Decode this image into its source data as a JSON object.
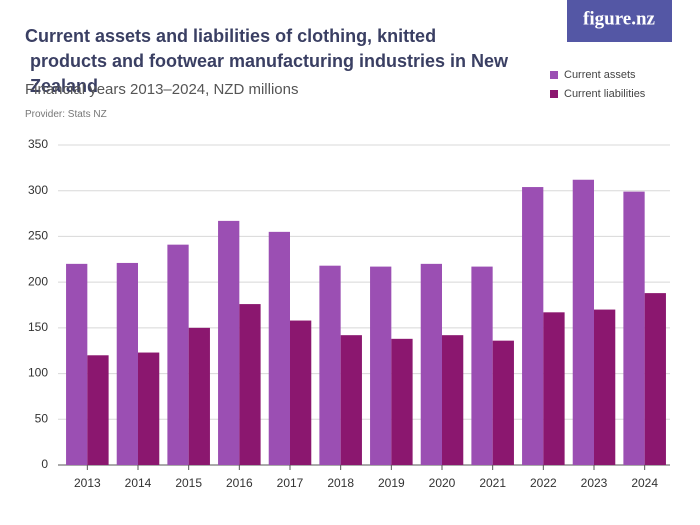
{
  "logo": "figure.nz",
  "chart_data": {
    "type": "bar",
    "title": "Current assets and liabilities of clothing, knitted products and footwear manufacturing industries in New Zealand",
    "subtitle": "Financial years 2013–2024, NZD millions",
    "provider": "Provider: Stats NZ",
    "categories": [
      "2013",
      "2014",
      "2015",
      "2016",
      "2017",
      "2018",
      "2019",
      "2020",
      "2021",
      "2022",
      "2023",
      "2024"
    ],
    "series": [
      {
        "name": "Current assets",
        "color": "#9b4fb3",
        "values": [
          220,
          221,
          241,
          267,
          255,
          218,
          217,
          220,
          217,
          304,
          312,
          299
        ]
      },
      {
        "name": "Current liabilities",
        "color": "#8b176f",
        "values": [
          120,
          123,
          150,
          176,
          158,
          142,
          138,
          142,
          136,
          167,
          170,
          188
        ]
      }
    ],
    "ylim": [
      0,
      350
    ],
    "yticks": [
      0,
      50,
      100,
      150,
      200,
      250,
      300,
      350
    ],
    "grid": true,
    "legend": "top-right"
  }
}
